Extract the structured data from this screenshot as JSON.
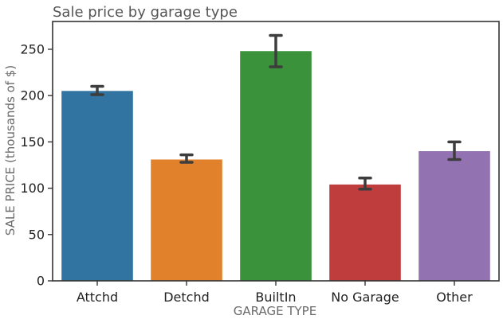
{
  "chart_data": {
    "type": "bar",
    "title": "Sale price by garage type",
    "xlabel": "GARAGE TYPE",
    "ylabel": "SALE PRICE (thousands of $)",
    "categories": [
      "Attchd",
      "Detchd",
      "BuiltIn",
      "No Garage",
      "Other"
    ],
    "values": [
      205,
      131,
      248,
      104,
      140
    ],
    "error_bars": [
      {
        "low": 201,
        "high": 210
      },
      {
        "low": 128,
        "high": 136
      },
      {
        "low": 231,
        "high": 265
      },
      {
        "low": 99,
        "high": 111
      },
      {
        "low": 131,
        "high": 150
      }
    ],
    "colors": [
      "#3274a1",
      "#e1812c",
      "#3a923a",
      "#c03d3e",
      "#9372b2"
    ],
    "ylim": [
      0,
      280
    ],
    "yticks": [
      0,
      50,
      100,
      150,
      200,
      250
    ],
    "grid": false,
    "legend": "none"
  }
}
